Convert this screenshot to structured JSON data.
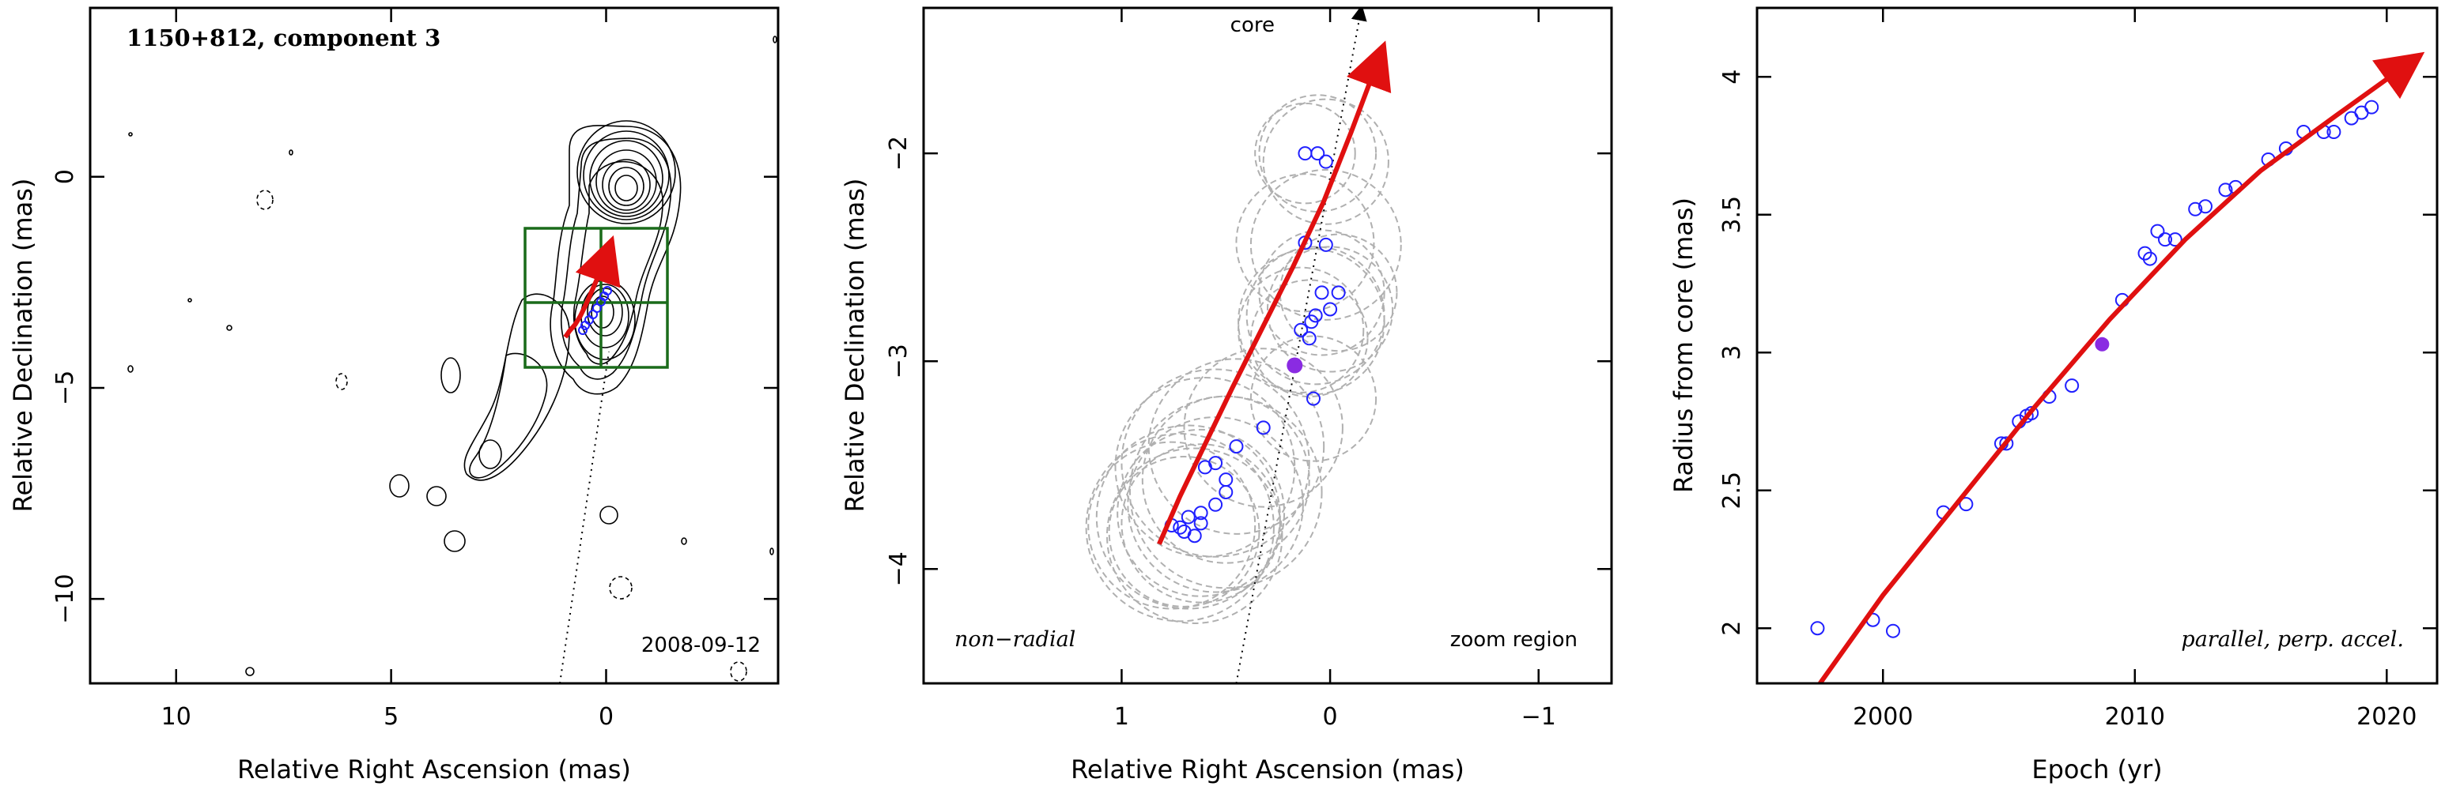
{
  "chart_data": [
    {
      "type": "contour",
      "panel": "left",
      "title": "1150+812, component 3",
      "date_label": "2008-09-12",
      "xlabel": "Relative Right Ascension (mas)",
      "ylabel": "Relative Declination (mas)",
      "xlim": [
        12,
        -4
      ],
      "ylim": [
        -12,
        4
      ],
      "xticks": [
        10,
        5,
        0
      ],
      "yticks": [
        0,
        -5,
        -10
      ],
      "xtick_labels": [
        "10",
        "5",
        "0"
      ],
      "ytick_labels": [
        "0",
        "−5",
        "−10"
      ],
      "zoom_box": {
        "x": [
          1.9,
          -1.4
        ],
        "y": [
          -4.5,
          -1.3
        ]
      },
      "trajectory_x": [
        0.95,
        0.85,
        0.72,
        0.6,
        0.48,
        0.35,
        0.2,
        0.02,
        -0.1
      ],
      "trajectory_y": [
        -3.8,
        -3.65,
        -3.5,
        -3.3,
        -3.05,
        -2.75,
        -2.4,
        -1.95,
        -1.6
      ],
      "colors": {
        "contour": "#000000",
        "box": "#1a6b1a",
        "trajectory": "#e01010",
        "points": "#2020ff"
      }
    },
    {
      "type": "scatter",
      "panel": "middle",
      "xlabel": "Relative Right Ascension (mas)",
      "ylabel": "Relative Declination (mas)",
      "xlim": [
        1.95,
        -1.35
      ],
      "ylim": [
        -4.55,
        -1.3
      ],
      "xticks": [
        1,
        0,
        -1
      ],
      "yticks": [
        -2,
        -3,
        -4
      ],
      "xtick_labels": [
        "1",
        "0",
        "−1"
      ],
      "ytick_labels": [
        "−2",
        "−3",
        "−4"
      ],
      "annotations": {
        "core": "core",
        "left": "non−radial",
        "right": "zoom region"
      },
      "points_x": [
        0.12,
        0.06,
        0.02,
        0.12,
        0.02,
        0.04,
        -0.04,
        0.0,
        0.07,
        0.09,
        0.14,
        0.1,
        0.08,
        0.32,
        0.45,
        0.55,
        0.6,
        0.5,
        0.5,
        0.55,
        0.62,
        0.68,
        0.62,
        0.7,
        0.76,
        0.65,
        0.72
      ],
      "points_y": [
        -2.0,
        -2.0,
        -2.04,
        -2.43,
        -2.44,
        -2.67,
        -2.67,
        -2.75,
        -2.78,
        -2.81,
        -2.85,
        -2.89,
        -3.18,
        -3.32,
        -3.41,
        -3.49,
        -3.51,
        -3.57,
        -3.63,
        -3.69,
        -3.73,
        -3.75,
        -3.78,
        -3.82,
        -3.79,
        -3.84,
        -3.8
      ],
      "highlight_point": {
        "x": 0.17,
        "y": -3.02
      },
      "circle_centers_x": [
        0.12,
        0.06,
        0.02,
        0.12,
        0.02,
        0.04,
        -0.04,
        0.0,
        0.07,
        0.09,
        0.14,
        0.1,
        0.08,
        0.32,
        0.45,
        0.55,
        0.6,
        0.5,
        0.5,
        0.55,
        0.62,
        0.68,
        0.62,
        0.7,
        0.76,
        0.65,
        0.72
      ],
      "circle_centers_y": [
        -2.0,
        -2.0,
        -2.04,
        -2.43,
        -2.44,
        -2.67,
        -2.67,
        -2.75,
        -2.78,
        -2.81,
        -2.85,
        -2.89,
        -3.18,
        -3.32,
        -3.41,
        -3.49,
        -3.51,
        -3.57,
        -3.63,
        -3.69,
        -3.73,
        -3.75,
        -3.78,
        -3.82,
        -3.79,
        -3.84,
        -3.8
      ],
      "circle_radii": [
        0.24,
        0.28,
        0.3,
        0.33,
        0.36,
        0.3,
        0.28,
        0.3,
        0.33,
        0.35,
        0.3,
        0.28,
        0.3,
        0.38,
        0.42,
        0.45,
        0.43,
        0.4,
        0.46,
        0.42,
        0.4,
        0.44,
        0.38,
        0.36,
        0.4,
        0.42,
        0.45
      ],
      "core_line": {
        "x": [
          0.45,
          -0.15
        ],
        "y": [
          -4.55,
          -1.3
        ]
      },
      "trajectory_x": [
        0.82,
        0.72,
        0.6,
        0.47,
        0.33,
        0.18,
        0.03,
        -0.1,
        -0.25
      ],
      "trajectory_y": [
        -3.88,
        -3.65,
        -3.4,
        -3.13,
        -2.85,
        -2.55,
        -2.23,
        -1.9,
        -1.5
      ],
      "colors": {
        "points": "#2020ff",
        "highlight": "#8a2be2",
        "circles": "#b0b0b0",
        "trajectory": "#e01010",
        "core_line": "#000000"
      }
    },
    {
      "type": "scatter",
      "panel": "right",
      "xlabel": "Epoch (yr)",
      "ylabel": "Radius from core (mas)",
      "xlim": [
        1995,
        2022
      ],
      "ylim": [
        1.8,
        4.25
      ],
      "xticks": [
        2000,
        2010,
        2020
      ],
      "yticks": [
        2,
        2.5,
        3,
        3.5,
        4
      ],
      "xtick_labels": [
        "2000",
        "2010",
        "2020"
      ],
      "ytick_labels": [
        "2",
        "2.5",
        "3",
        "3.5",
        "4"
      ],
      "annotation": "parallel, perp. accel.",
      "points_x": [
        1997.4,
        1999.6,
        2000.4,
        2002.4,
        2003.3,
        2004.7,
        2004.9,
        2005.4,
        2005.7,
        2005.9,
        2006.6,
        2007.5,
        2009.5,
        2010.4,
        2010.6,
        2010.9,
        2011.2,
        2011.6,
        2012.4,
        2012.8,
        2013.6,
        2014.0,
        2015.3,
        2016.0,
        2016.7,
        2017.5,
        2017.9,
        2018.6,
        2019.0,
        2019.4
      ],
      "points_y": [
        2.0,
        2.03,
        1.99,
        2.42,
        2.45,
        2.67,
        2.67,
        2.75,
        2.77,
        2.78,
        2.84,
        2.88,
        3.19,
        3.36,
        3.34,
        3.44,
        3.41,
        3.41,
        3.52,
        3.53,
        3.59,
        3.6,
        3.7,
        3.74,
        3.8,
        3.8,
        3.8,
        3.85,
        3.87,
        3.89
      ],
      "highlight_point": {
        "x": 2008.7,
        "y": 3.03
      },
      "trajectory_x": [
        1997.5,
        2000,
        2003,
        2006,
        2009,
        2012,
        2015,
        2018,
        2021.2
      ],
      "trajectory_y": [
        1.8,
        2.12,
        2.46,
        2.8,
        3.12,
        3.41,
        3.66,
        3.86,
        4.07
      ],
      "colors": {
        "points": "#2020ff",
        "highlight": "#8a2be2",
        "trajectory": "#e01010"
      }
    }
  ]
}
